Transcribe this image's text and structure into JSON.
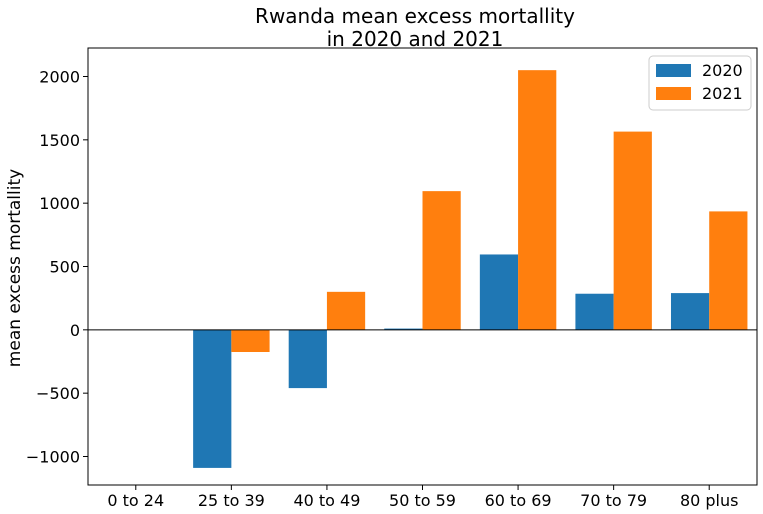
{
  "chart_data": {
    "type": "bar",
    "title_lines": [
      "Rwanda mean excess mortallity",
      "in 2020 and 2021"
    ],
    "xlabel": "",
    "ylabel": "mean excess mortallity",
    "categories": [
      "0 to 24",
      "25 to 39",
      "40 to 49",
      "50 to 59",
      "60 to 69",
      "70 to 79",
      "80 plus"
    ],
    "series": [
      {
        "name": "2020",
        "color": "#1f77b4",
        "values": [
          0,
          -1090,
          -460,
          10,
          595,
          285,
          290
        ]
      },
      {
        "name": "2021",
        "color": "#ff7f0e",
        "values": [
          0,
          -175,
          300,
          1095,
          2050,
          1565,
          935
        ]
      }
    ],
    "ylim": [
      -1225,
      2225
    ],
    "yticks": [
      -1000,
      -500,
      0,
      500,
      1000,
      1500,
      2000
    ],
    "ytick_labels": [
      "−1000",
      "−500",
      "0",
      "500",
      "1000",
      "1500",
      "2000"
    ],
    "zero_line": true,
    "grid": false,
    "legend_position": "top-right"
  }
}
